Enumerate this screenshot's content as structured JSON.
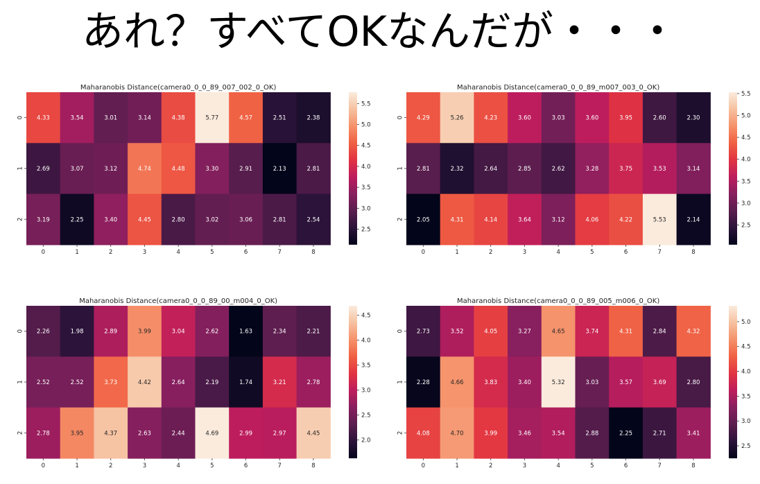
{
  "page": {
    "title": "あれ？すべてOKなんだが・・・"
  },
  "colormap": [
    "#03051a",
    "#2b1339",
    "#5a1e4e",
    "#881f5e",
    "#bd1d5d",
    "#e13342",
    "#f06043",
    "#f5916a",
    "#f6c19f",
    "#faebdd"
  ],
  "chart_data": [
    {
      "type": "heatmap",
      "title": "Maharanobis Distance(camera0_0_0_89_007_002_0_OK)",
      "x_ticks": [
        "0",
        "1",
        "2",
        "3",
        "4",
        "5",
        "6",
        "7",
        "8"
      ],
      "y_ticks": [
        "0",
        "1",
        "2"
      ],
      "values": [
        [
          4.33,
          3.54,
          3.01,
          3.14,
          4.38,
          5.77,
          4.57,
          2.51,
          2.38
        ],
        [
          2.69,
          3.07,
          3.12,
          4.74,
          4.48,
          3.3,
          2.91,
          2.13,
          2.81
        ],
        [
          3.19,
          2.25,
          3.4,
          4.45,
          2.8,
          3.02,
          3.06,
          2.81,
          2.54
        ]
      ],
      "vmin": 2.13,
      "vmax": 5.77,
      "colorbar_ticks": [
        "2.5",
        "3.0",
        "3.5",
        "4.0",
        "4.5",
        "5.0",
        "5.5"
      ]
    },
    {
      "type": "heatmap",
      "title": "Maharanobis Distance(camera0_0_0_89_m007_003_0_OK)",
      "x_ticks": [
        "0",
        "1",
        "2",
        "3",
        "4",
        "5",
        "6",
        "7",
        "8"
      ],
      "y_ticks": [
        "0",
        "1",
        "2"
      ],
      "values": [
        [
          4.29,
          5.26,
          4.23,
          3.6,
          3.03,
          3.6,
          3.95,
          2.6,
          2.3
        ],
        [
          2.81,
          2.32,
          2.64,
          2.85,
          2.62,
          3.28,
          3.75,
          3.53,
          3.14
        ],
        [
          2.05,
          4.31,
          4.14,
          3.64,
          3.12,
          4.06,
          4.22,
          5.53,
          2.14
        ]
      ],
      "vmin": 2.05,
      "vmax": 5.53,
      "colorbar_ticks": [
        "2.5",
        "3.0",
        "3.5",
        "4.0",
        "4.5",
        "5.0",
        "5.5"
      ]
    },
    {
      "type": "heatmap",
      "title": "Maharanobis Distance(camera0_0_0_89_00_m004_0_OK)",
      "x_ticks": [
        "0",
        "1",
        "2",
        "3",
        "4",
        "5",
        "6",
        "7",
        "8"
      ],
      "y_ticks": [
        "0",
        "1",
        "2"
      ],
      "values": [
        [
          2.26,
          1.98,
          2.89,
          3.99,
          3.04,
          2.62,
          1.63,
          2.34,
          2.21
        ],
        [
          2.52,
          2.52,
          3.73,
          4.42,
          2.64,
          2.19,
          1.74,
          3.21,
          2.78
        ],
        [
          2.78,
          3.95,
          4.37,
          2.63,
          2.44,
          4.69,
          2.99,
          2.97,
          4.45
        ]
      ],
      "vmin": 1.63,
      "vmax": 4.69,
      "colorbar_ticks": [
        "2.0",
        "2.5",
        "3.0",
        "3.5",
        "4.0",
        "4.5"
      ]
    },
    {
      "type": "heatmap",
      "title": "Maharanobis Distance(camera0_0_0_89_005_m006_0_OK)",
      "x_ticks": [
        "0",
        "1",
        "2",
        "3",
        "4",
        "5",
        "6",
        "7",
        "8"
      ],
      "y_ticks": [
        "0",
        "1",
        "2"
      ],
      "values": [
        [
          2.73,
          3.52,
          4.05,
          3.27,
          4.65,
          3.74,
          4.31,
          2.84,
          4.32
        ],
        [
          2.28,
          4.66,
          3.83,
          3.4,
          5.32,
          3.03,
          3.57,
          3.69,
          2.8
        ],
        [
          4.08,
          4.7,
          3.99,
          3.46,
          3.54,
          2.88,
          2.25,
          2.71,
          3.41
        ]
      ],
      "vmin": 2.25,
      "vmax": 5.32,
      "colorbar_ticks": [
        "2.5",
        "3.0",
        "3.5",
        "4.0",
        "4.5",
        "5.0"
      ]
    }
  ]
}
